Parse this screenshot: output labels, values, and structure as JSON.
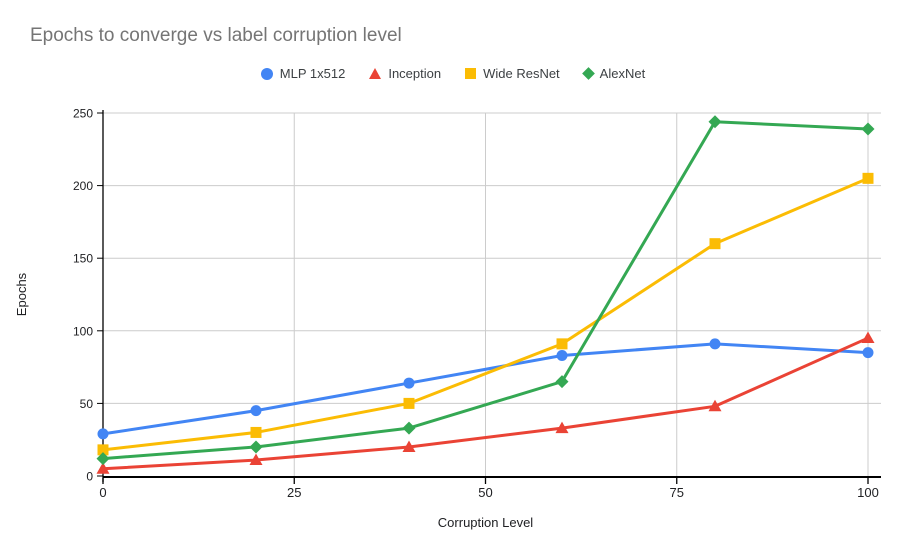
{
  "chart_data": {
    "type": "line",
    "title": "Epochs to converge vs label corruption level",
    "xlabel": "Corruption Level",
    "ylabel": "Epochs",
    "x": [
      0,
      20,
      40,
      60,
      80,
      100
    ],
    "series": [
      {
        "name": "MLP 1x512",
        "marker": "circle",
        "color": "#4285F4",
        "values": [
          29,
          45,
          64,
          83,
          91,
          85
        ]
      },
      {
        "name": "Inception",
        "marker": "triangle",
        "color": "#EA4335",
        "values": [
          5,
          11,
          20,
          33,
          48,
          95
        ]
      },
      {
        "name": "Wide ResNet",
        "marker": "square",
        "color": "#FBBC04",
        "values": [
          18,
          30,
          50,
          91,
          160,
          205
        ]
      },
      {
        "name": "AlexNet",
        "marker": "diamond",
        "color": "#34A853",
        "values": [
          12,
          20,
          33,
          65,
          244,
          239
        ]
      }
    ],
    "xlim": [
      0,
      100
    ],
    "ylim": [
      0,
      250
    ],
    "x_ticks": [
      0,
      25,
      50,
      75,
      100
    ],
    "y_ticks": [
      0,
      50,
      100,
      150,
      200,
      250
    ],
    "grid": true,
    "legend_position": "top-center",
    "style": {
      "background": "#ffffff",
      "title_color": "#757575",
      "legend_text_color": "#3c4043",
      "tick_label_color": "#202124",
      "axis_title_color": "#202124",
      "grid_color": "#cccccc",
      "axis_line_color": "#000000"
    }
  }
}
